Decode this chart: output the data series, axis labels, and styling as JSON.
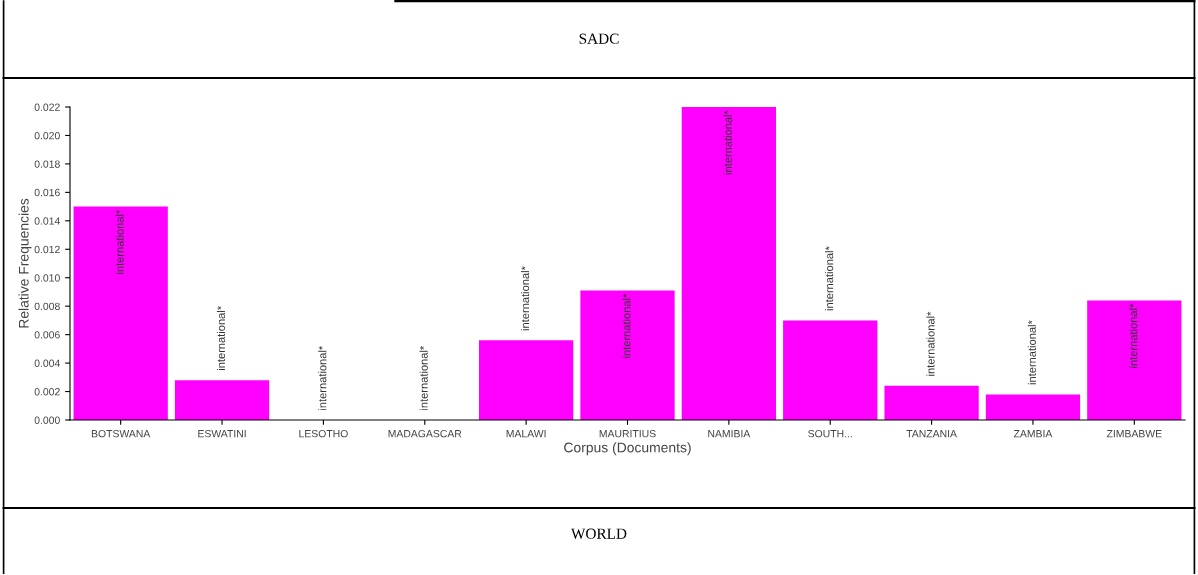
{
  "chart_data": {
    "type": "bar",
    "title": "SADC",
    "xlabel": "Corpus (Documents)",
    "ylabel": "Relative Frequencies",
    "categories": [
      "BOTSWANA",
      "ESWATINI",
      "LESOTHO",
      "MADAGASCAR",
      "MALAWI",
      "MAURITIUS",
      "NAMIBIA",
      "SOUTH...",
      "TANZANIA",
      "ZAMBIA",
      "ZIMBABWE"
    ],
    "values": [
      0.015,
      0.0028,
      0,
      0,
      0.0056,
      0.0091,
      0.022,
      0.007,
      0.0024,
      0.0018,
      0.0084
    ],
    "value_labels": [
      "international*",
      "international*",
      "international*",
      "international*",
      "international*",
      "international*",
      "international*",
      "international*",
      "international*",
      "international*",
      "international*"
    ],
    "color": "#ff00ff",
    "ylim": [
      0,
      0.022
    ],
    "yticks": [
      {
        "value": 0,
        "label": "0.000"
      },
      {
        "value": 0.002,
        "label": "0.002"
      },
      {
        "value": 0.004,
        "label": "0.004"
      },
      {
        "value": 0.006,
        "label": "0.006"
      },
      {
        "value": 0.008,
        "label": "0.008"
      },
      {
        "value": 0.01,
        "label": "0.010"
      },
      {
        "value": 0.012,
        "label": "0.012"
      },
      {
        "value": 0.014,
        "label": "0.014"
      },
      {
        "value": 0.016,
        "label": "0.016"
      },
      {
        "value": 0.018,
        "label": "0.018"
      },
      {
        "value": 0.02,
        "label": "0.020"
      },
      {
        "value": 0.022,
        "label": "0.022"
      }
    ],
    "annotations": [
      "WORLD"
    ],
    "grid": false
  }
}
